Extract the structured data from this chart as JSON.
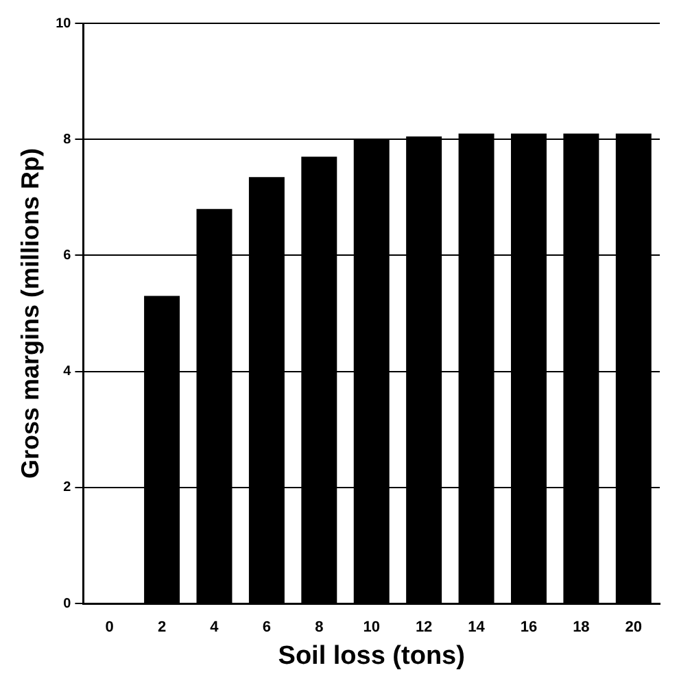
{
  "chart_data": {
    "type": "bar",
    "xlabel": "Soil loss (tons)",
    "ylabel": "Gross margins (millions Rp)",
    "categories": [
      "0",
      "2",
      "4",
      "6",
      "8",
      "10",
      "12",
      "14",
      "16",
      "18",
      "20"
    ],
    "values": [
      0,
      5.3,
      6.8,
      7.35,
      7.7,
      8.0,
      8.05,
      8.1,
      8.1,
      8.1,
      8.1
    ],
    "color": "#000000",
    "ylim": [
      0,
      10
    ],
    "yticks": [
      0,
      2,
      4,
      6,
      8,
      10
    ],
    "grid": "y",
    "legend": false
  }
}
